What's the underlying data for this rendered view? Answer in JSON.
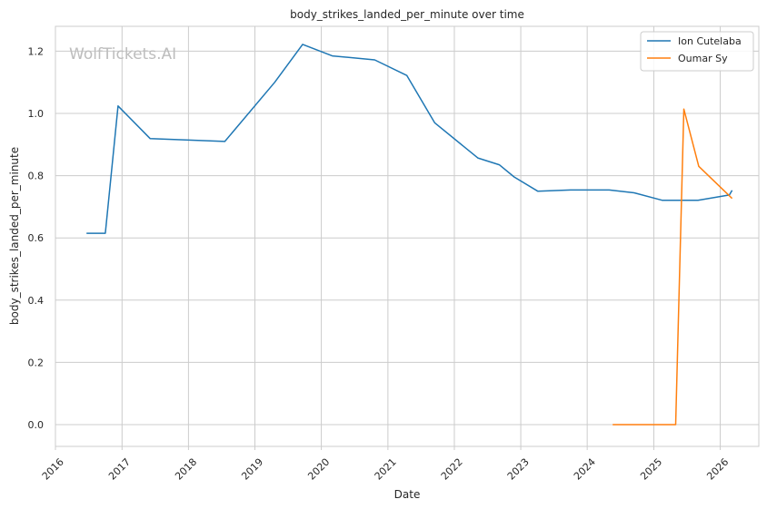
{
  "watermark": "WolfTickets.AI",
  "chart_data": {
    "type": "line",
    "title": "body_strikes_landed_per_minute over time",
    "xlabel": "Date",
    "ylabel": "body_strikes_landed_per_minute",
    "xlim": [
      "2016-01-01",
      "2026-08-01"
    ],
    "ylim": [
      -0.07,
      1.28
    ],
    "x_ticks": [
      "2016",
      "2017",
      "2018",
      "2019",
      "2020",
      "2021",
      "2022",
      "2023",
      "2024",
      "2025",
      "2026"
    ],
    "y_ticks": [
      "0.0",
      "0.2",
      "0.4",
      "0.6",
      "0.8",
      "1.0",
      "1.2"
    ],
    "grid": true,
    "legend_position": "top-right",
    "series": [
      {
        "name": "Ion Cutelaba",
        "color": "#1f77b4",
        "points": [
          {
            "x": "2016-06-20",
            "y": 0.615
          },
          {
            "x": "2016-10-01",
            "y": 0.615
          },
          {
            "x": "2016-12-10",
            "y": 1.024
          },
          {
            "x": "2017-06-05",
            "y": 0.919
          },
          {
            "x": "2018-07-20",
            "y": 0.91
          },
          {
            "x": "2019-04-20",
            "y": 1.1
          },
          {
            "x": "2019-09-20",
            "y": 1.222
          },
          {
            "x": "2020-03-01",
            "y": 1.185
          },
          {
            "x": "2020-10-20",
            "y": 1.172
          },
          {
            "x": "2021-04-15",
            "y": 1.122
          },
          {
            "x": "2021-09-15",
            "y": 0.97
          },
          {
            "x": "2022-05-10",
            "y": 0.857
          },
          {
            "x": "2022-09-05",
            "y": 0.835
          },
          {
            "x": "2022-11-25",
            "y": 0.796
          },
          {
            "x": "2023-04-05",
            "y": 0.75
          },
          {
            "x": "2023-10-01",
            "y": 0.754
          },
          {
            "x": "2024-05-01",
            "y": 0.754
          },
          {
            "x": "2024-09-15",
            "y": 0.745
          },
          {
            "x": "2025-02-15",
            "y": 0.721
          },
          {
            "x": "2025-09-01",
            "y": 0.721
          },
          {
            "x": "2026-02-20",
            "y": 0.738
          },
          {
            "x": "2026-03-07",
            "y": 0.753
          }
        ]
      },
      {
        "name": "Oumar Sy",
        "color": "#ff7f0e",
        "points": [
          {
            "x": "2024-05-20",
            "y": 0.0
          },
          {
            "x": "2025-05-01",
            "y": 0.0
          },
          {
            "x": "2025-06-15",
            "y": 1.014
          },
          {
            "x": "2025-09-05",
            "y": 0.83
          },
          {
            "x": "2026-03-07",
            "y": 0.727
          }
        ]
      }
    ]
  }
}
